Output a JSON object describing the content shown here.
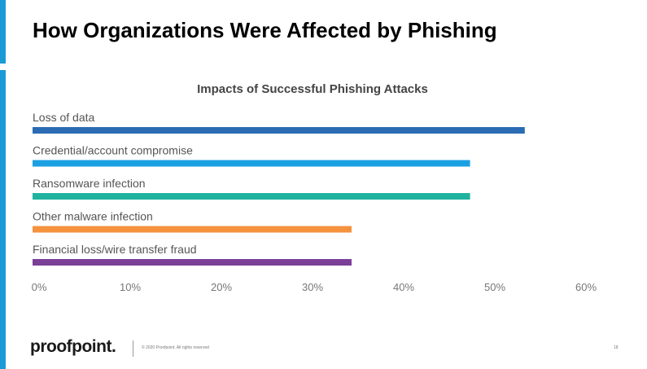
{
  "slide": {
    "title": "How Organizations Were Affected by Phishing",
    "footer": {
      "logo": "proofpoint.",
      "copyright": "© 2020 Proofpoint. All rights reserved",
      "page_number": "18"
    },
    "accent_color": "#1c9ad6"
  },
  "chart_data": {
    "type": "bar",
    "orientation": "horizontal",
    "title": "Impacts of Successful Phishing Attacks",
    "categories": [
      "Loss of data",
      "Credential/account compromise",
      "Ransomware infection",
      "Other malware infection",
      "Financial loss/wire transfer fraud"
    ],
    "values": [
      54,
      48,
      48,
      35,
      35
    ],
    "colors": [
      "#2b6cb4",
      "#1ba1e2",
      "#20b39f",
      "#f5923e",
      "#7b3f98"
    ],
    "xlim": [
      0,
      60
    ],
    "x_ticks": [
      "0%",
      "10%",
      "20%",
      "30%",
      "40%",
      "50%",
      "60%"
    ],
    "grid": false,
    "legend": "none"
  }
}
